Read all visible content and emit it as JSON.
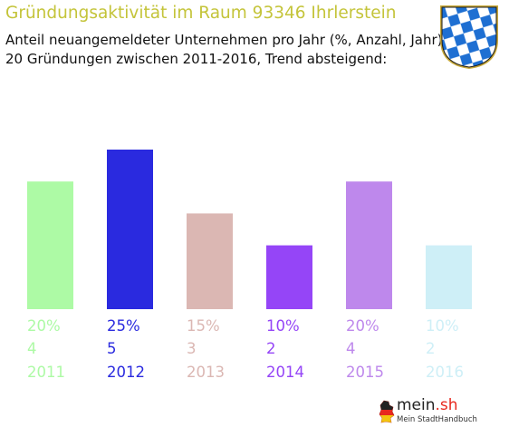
{
  "title": "Gründungsaktivität im Raum 93346 Ihrlerstein",
  "subtitle_line1": "Anteil neuangemeldeter Unternehmen pro Jahr (%, Anzahl, Jahr)",
  "subtitle_line2": "20 Gründungen zwischen 2011-2016, Trend absteigend:",
  "logo": {
    "name": "mein.sh",
    "name_main": "mein",
    "name_tld": ".sh",
    "tagline": "Mein StadtHandbuch"
  },
  "crest_icon": "bavarian-lozenge-crest-icon",
  "chart_data": {
    "type": "bar",
    "categories": [
      "2011",
      "2012",
      "2013",
      "2014",
      "2015",
      "2016"
    ],
    "values": [
      20,
      25,
      15,
      10,
      20,
      10
    ],
    "value_labels": [
      "20%",
      "25%",
      "15%",
      "10%",
      "20%",
      "10%"
    ],
    "counts": [
      "4",
      "5",
      "3",
      "2",
      "4",
      "2"
    ],
    "colors": [
      "#adfaa5",
      "#2a2adf",
      "#dbb7b3",
      "#9545f7",
      "#be88ec",
      "#ceeff7"
    ],
    "unit": "%",
    "ylim": [
      0,
      25
    ],
    "grid": false,
    "legend": "none"
  }
}
